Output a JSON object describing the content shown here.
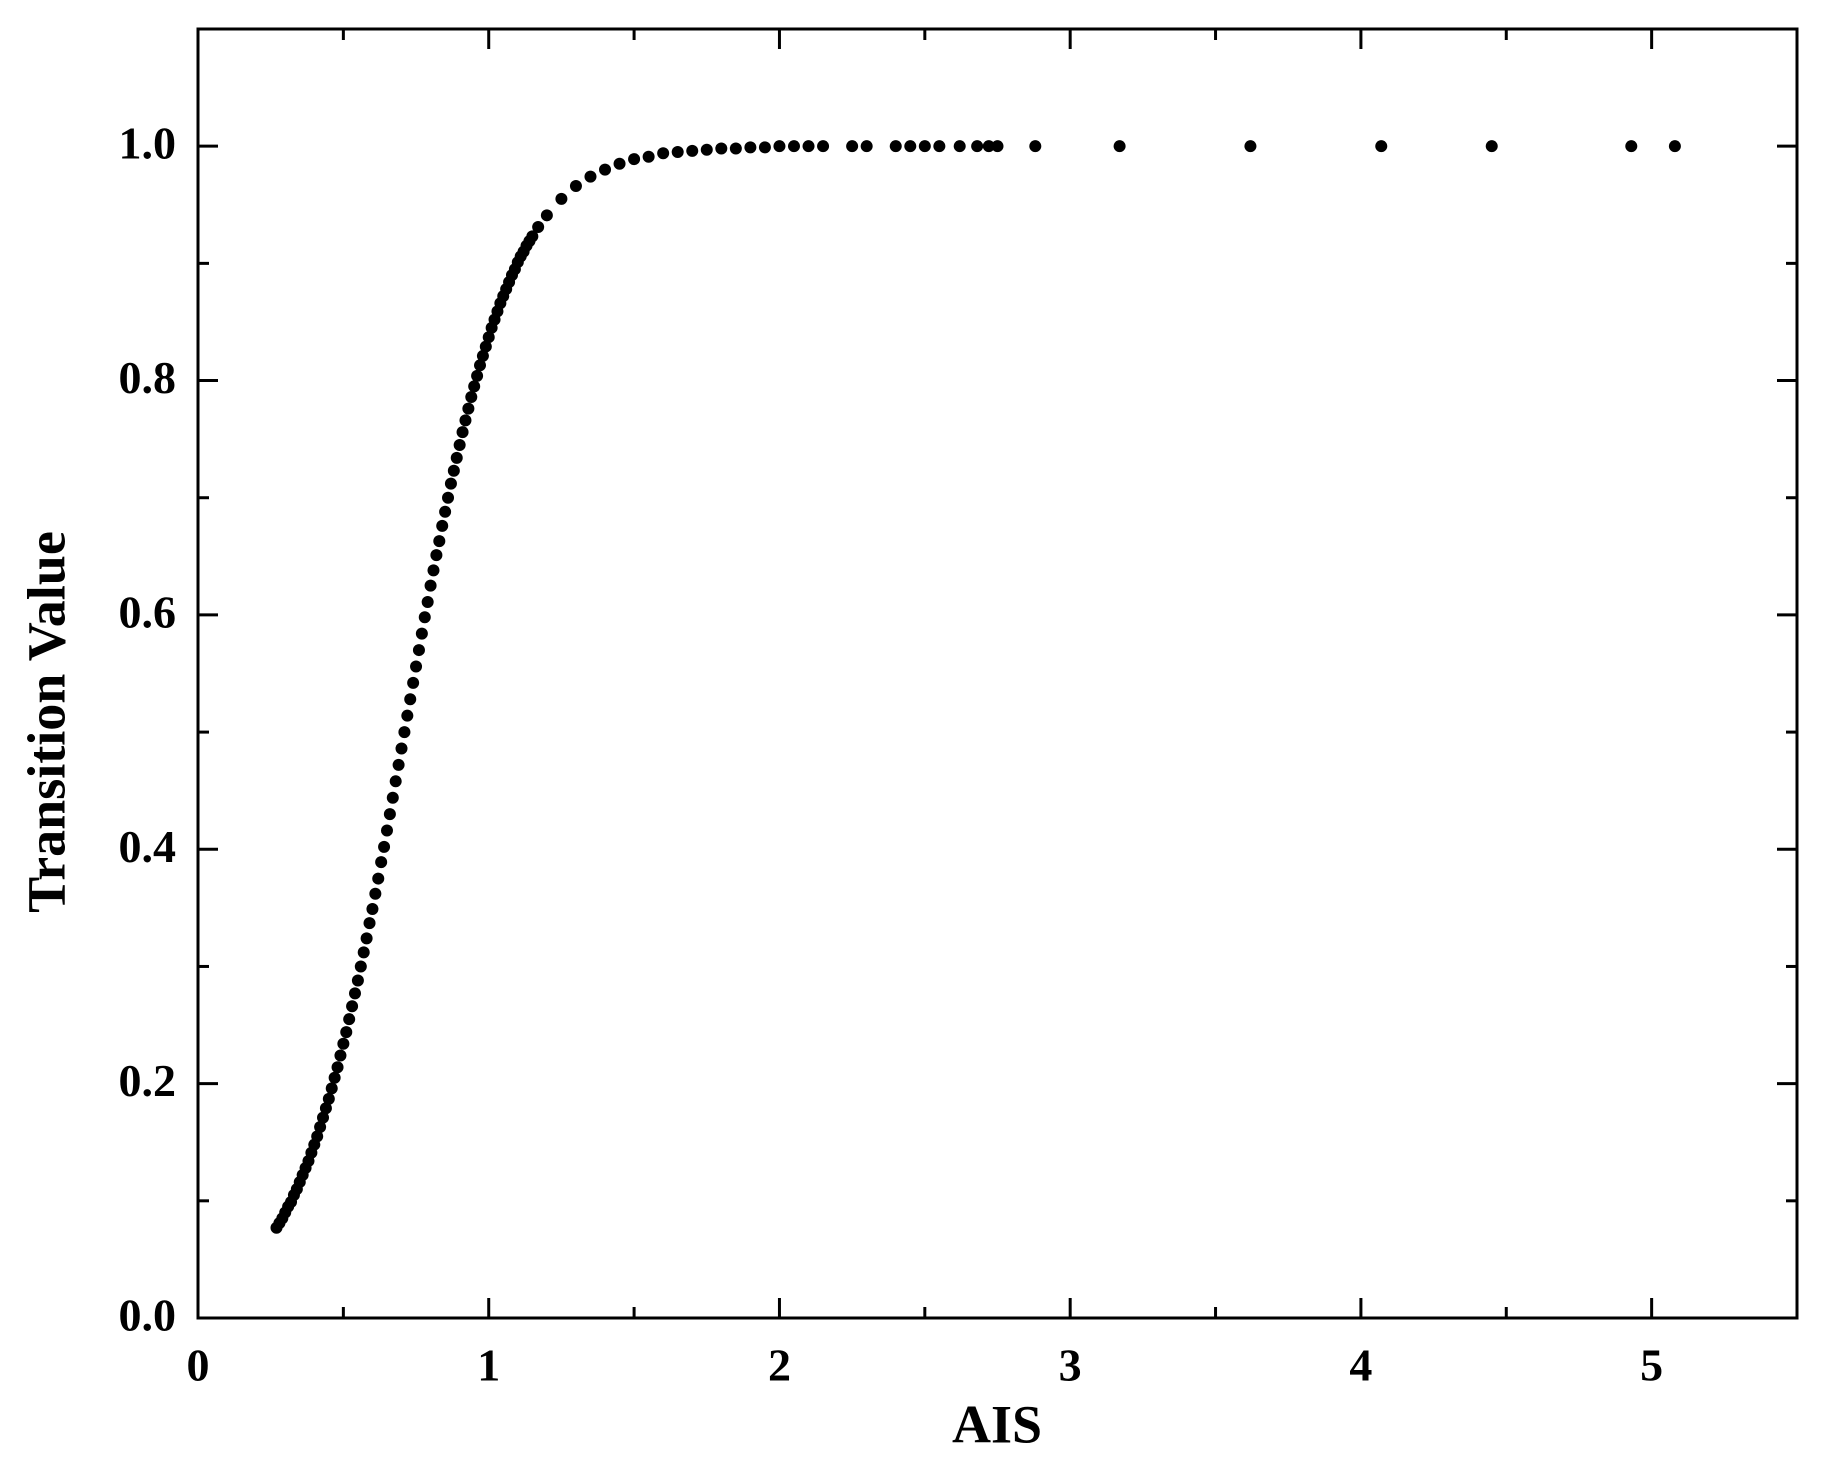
{
  "chart_data": {
    "type": "scatter",
    "x_label": "AIS",
    "y_label": "Transition Value",
    "color": "#000000",
    "xlim": [
      0,
      5.5
    ],
    "ylim": [
      0,
      1.1
    ],
    "xticks": [
      0,
      1,
      2,
      3,
      4,
      5
    ],
    "yticks": [
      {
        "value": 0,
        "label": "0.0"
      },
      {
        "value": 0.2,
        "label": "0.2"
      },
      {
        "value": 0.4,
        "label": "0.4"
      },
      {
        "value": 0.6,
        "label": "0.6"
      },
      {
        "value": 0.8,
        "label": "0.8"
      },
      {
        "value": 1,
        "label": "1.0"
      }
    ],
    "xminorticks": [
      0.5,
      1.5,
      2.5,
      3.5,
      4.5
    ],
    "yminorticks": [
      0.1,
      0.3,
      0.5,
      0.7,
      0.9
    ],
    "x": [
      0.27,
      0.28,
      0.29,
      0.3,
      0.31,
      0.32,
      0.33,
      0.34,
      0.35,
      0.36,
      0.37,
      0.38,
      0.39,
      0.4,
      0.41,
      0.42,
      0.43,
      0.44,
      0.45,
      0.46,
      0.47,
      0.48,
      0.49,
      0.5,
      0.51,
      0.52,
      0.53,
      0.54,
      0.55,
      0.56,
      0.57,
      0.58,
      0.59,
      0.6,
      0.61,
      0.62,
      0.63,
      0.64,
      0.65,
      0.66,
      0.67,
      0.68,
      0.69,
      0.7,
      0.71,
      0.72,
      0.73,
      0.74,
      0.75,
      0.76,
      0.77,
      0.78,
      0.79,
      0.8,
      0.81,
      0.82,
      0.83,
      0.84,
      0.85,
      0.86,
      0.87,
      0.88,
      0.89,
      0.9,
      0.91,
      0.92,
      0.93,
      0.94,
      0.95,
      0.96,
      0.97,
      0.98,
      0.99,
      1.0,
      1.01,
      1.02,
      1.03,
      1.04,
      1.05,
      1.06,
      1.07,
      1.08,
      1.09,
      1.1,
      1.11,
      1.12,
      1.13,
      1.14,
      1.15,
      1.17,
      1.2,
      1.25,
      1.3,
      1.35,
      1.4,
      1.45,
      1.5,
      1.55,
      1.6,
      1.65,
      1.7,
      1.75,
      1.8,
      1.85,
      1.9,
      1.95,
      2.0,
      2.05,
      2.1,
      2.15,
      2.25,
      2.3,
      2.4,
      2.45,
      2.5,
      2.55,
      2.62,
      2.68,
      2.72,
      2.75,
      2.88,
      3.17,
      3.62,
      4.07,
      4.45,
      4.93,
      5.08
    ],
    "y": [
      0.077,
      0.081,
      0.085,
      0.09,
      0.095,
      0.099,
      0.105,
      0.11,
      0.116,
      0.122,
      0.128,
      0.134,
      0.141,
      0.148,
      0.155,
      0.163,
      0.171,
      0.179,
      0.187,
      0.196,
      0.205,
      0.214,
      0.224,
      0.234,
      0.244,
      0.255,
      0.266,
      0.277,
      0.288,
      0.3,
      0.312,
      0.324,
      0.337,
      0.349,
      0.362,
      0.375,
      0.389,
      0.402,
      0.416,
      0.43,
      0.444,
      0.458,
      0.472,
      0.486,
      0.5,
      0.514,
      0.528,
      0.542,
      0.556,
      0.57,
      0.584,
      0.598,
      0.611,
      0.625,
      0.638,
      0.651,
      0.663,
      0.676,
      0.688,
      0.7,
      0.712,
      0.723,
      0.734,
      0.745,
      0.756,
      0.766,
      0.776,
      0.786,
      0.795,
      0.804,
      0.813,
      0.821,
      0.829,
      0.837,
      0.845,
      0.852,
      0.859,
      0.866,
      0.872,
      0.878,
      0.884,
      0.89,
      0.895,
      0.901,
      0.906,
      0.91,
      0.915,
      0.919,
      0.923,
      0.931,
      0.941,
      0.955,
      0.966,
      0.974,
      0.98,
      0.985,
      0.989,
      0.991,
      0.994,
      0.995,
      0.996,
      0.997,
      0.998,
      0.998,
      0.999,
      0.999,
      1.0,
      1.0,
      1.0,
      1.0,
      1.0,
      1.0,
      1.0,
      1.0,
      1.0,
      1.0,
      1.0,
      1.0,
      1.0,
      1.0,
      1.0,
      1.0,
      1.0,
      1.0,
      1.0,
      1.0,
      1.0
    ]
  }
}
